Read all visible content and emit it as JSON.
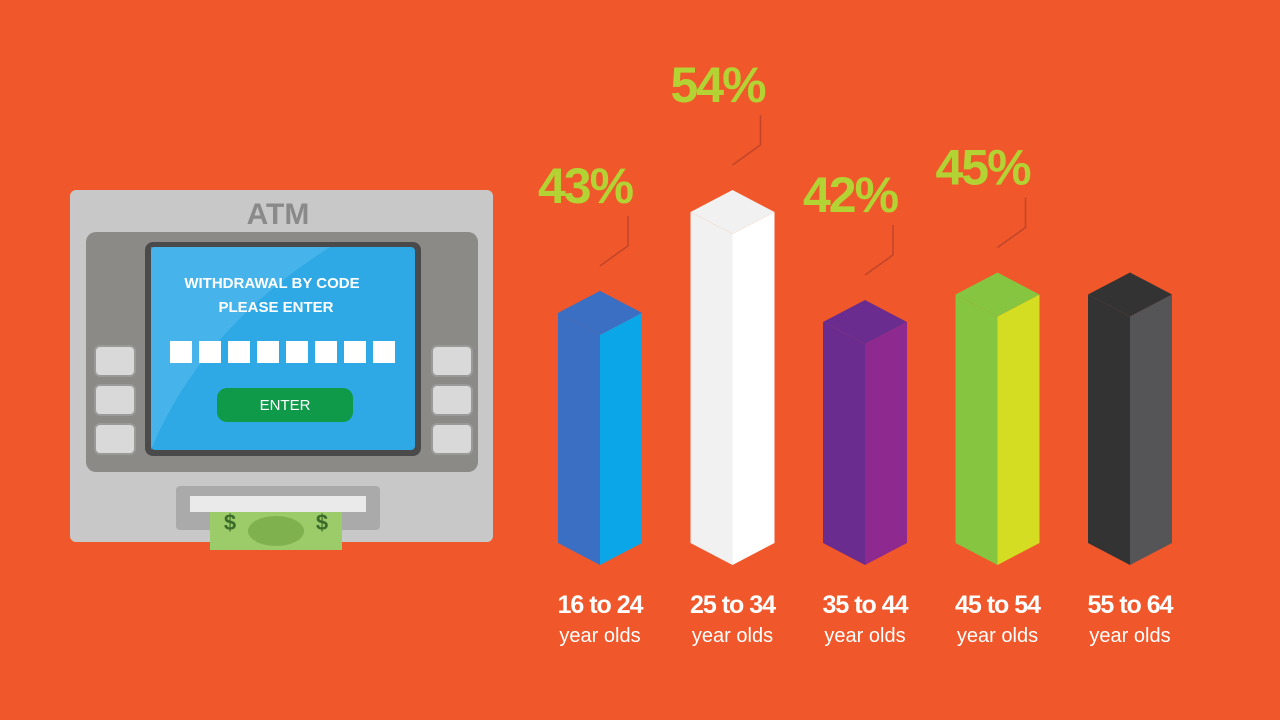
{
  "illustration": {
    "atm_label": "ATM",
    "screen_line_1": "WITHDRAWAL BY CODE",
    "screen_line_2": "PLEASE ENTER",
    "button": "ENTER",
    "bill_symbol": "$"
  },
  "chart_data": {
    "type": "bar3d",
    "categories": [
      [
        "16 to 24",
        "year olds"
      ],
      [
        "25 to 34",
        "year olds"
      ],
      [
        "35 to 44",
        "year olds"
      ],
      [
        "45 to 54",
        "year olds"
      ],
      [
        "55 to 64",
        "year olds"
      ]
    ],
    "values": [
      43,
      54,
      42,
      45,
      45
    ],
    "value_labels": [
      "43%",
      "54%",
      "42%",
      "45%",
      null
    ],
    "colors": [
      [
        "#3a6fc4",
        "#0aa6e8"
      ],
      [
        "#f1f1f1",
        "#ffffff"
      ],
      [
        "#6a2c8e",
        "#8e2a8f"
      ],
      [
        "#86c540",
        "#d4dd22"
      ],
      [
        "#333333",
        "#555558"
      ]
    ],
    "label_color": "#b3d334"
  }
}
